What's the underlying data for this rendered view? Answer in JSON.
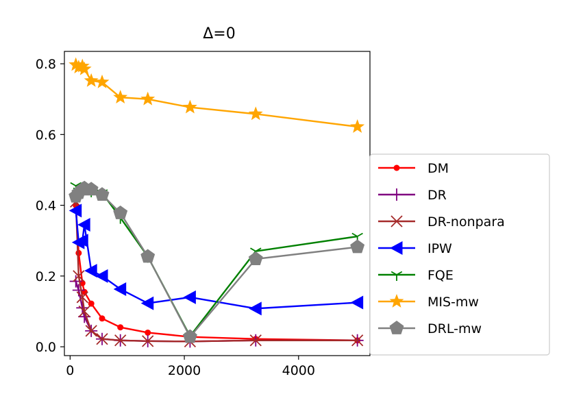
{
  "chart_data": {
    "type": "line",
    "title": "Δ=0",
    "xlabel": "",
    "ylabel": "",
    "xlim": [
      -100,
      5250
    ],
    "ylim": [
      -0.025,
      0.835
    ],
    "xticks": [
      0,
      2000,
      4000
    ],
    "xtick_labels": [
      "0",
      "2000",
      "4000"
    ],
    "yticks": [
      0.0,
      0.2,
      0.4,
      0.6,
      0.8
    ],
    "ytick_labels": [
      "0.0",
      "0.2",
      "0.4",
      "0.6",
      "0.8"
    ],
    "legend_position": "outside-right",
    "series": [
      {
        "name": "DM",
        "color": "#ff0000",
        "marker": "circle",
        "x": [
          100,
          150,
          215,
          250,
          370,
          560,
          880,
          1360,
          2100,
          3250,
          5030
        ],
        "y": [
          0.4,
          0.265,
          0.18,
          0.155,
          0.122,
          0.08,
          0.055,
          0.04,
          0.028,
          0.022,
          0.018
        ]
      },
      {
        "name": "DR",
        "color": "#800080",
        "marker": "plus",
        "x": [
          100,
          150,
          215,
          250,
          370,
          560,
          880,
          1360,
          2100,
          3250,
          5030
        ],
        "y": [
          0.185,
          0.16,
          0.11,
          0.085,
          0.045,
          0.022,
          0.018,
          0.016,
          0.015,
          0.018,
          0.018
        ]
      },
      {
        "name": "DR-nonpara",
        "color": "#a52a2a",
        "marker": "x",
        "x": [
          100,
          150,
          215,
          250,
          370,
          560,
          880,
          1360,
          2100,
          3250,
          5030
        ],
        "y": [
          0.41,
          0.2,
          0.14,
          0.1,
          0.045,
          0.022,
          0.018,
          0.016,
          0.015,
          0.018,
          0.018
        ]
      },
      {
        "name": "IPW",
        "color": "#0000ff",
        "marker": "triangle-left",
        "x": [
          100,
          150,
          215,
          250,
          370,
          560,
          880,
          1360,
          2100,
          3250,
          5030
        ],
        "y": [
          0.385,
          0.295,
          0.3,
          0.345,
          0.215,
          0.2,
          0.163,
          0.123,
          0.14,
          0.108,
          0.125
        ]
      },
      {
        "name": "FQE",
        "color": "#008000",
        "marker": "tri-down",
        "x": [
          100,
          150,
          215,
          250,
          370,
          560,
          880,
          1360,
          2100,
          3250,
          5030
        ],
        "y": [
          0.455,
          0.44,
          0.44,
          0.45,
          0.44,
          0.435,
          0.365,
          0.255,
          0.03,
          0.27,
          0.312
        ]
      },
      {
        "name": "MIS-mw",
        "color": "#ffa500",
        "marker": "star",
        "x": [
          100,
          150,
          215,
          250,
          370,
          560,
          880,
          1360,
          2100,
          3250,
          5030
        ],
        "y": [
          0.797,
          0.79,
          0.793,
          0.785,
          0.752,
          0.748,
          0.705,
          0.7,
          0.677,
          0.658,
          0.622
        ]
      },
      {
        "name": "DRL-mw",
        "color": "#808080",
        "marker": "pentagon",
        "x": [
          100,
          150,
          215,
          250,
          370,
          560,
          880,
          1360,
          2100,
          3250,
          5030
        ],
        "y": [
          0.425,
          0.435,
          0.445,
          0.448,
          0.445,
          0.43,
          0.378,
          0.255,
          0.028,
          0.248,
          0.282
        ]
      }
    ]
  }
}
